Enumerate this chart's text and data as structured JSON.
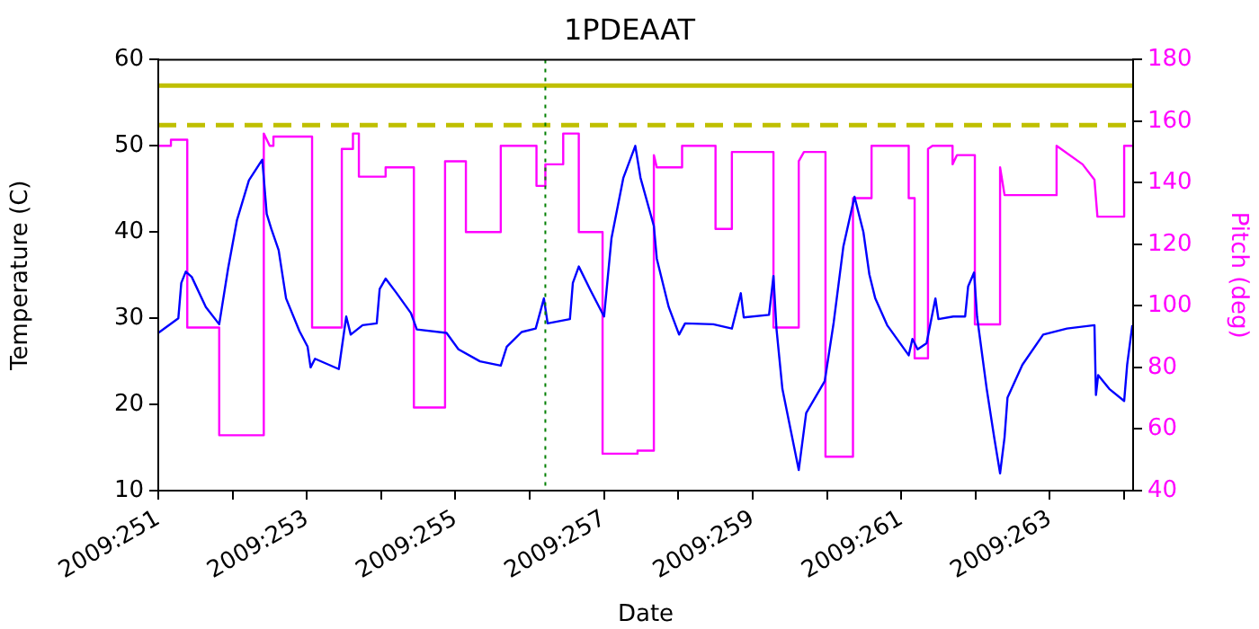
{
  "chart_data": {
    "type": "line",
    "title": "1PDEAAT",
    "xlabel": "Date",
    "ylabel": "Temperature (C)",
    "y2label": "Pitch (deg)",
    "xlim": [
      "2009-09-08T00:00",
      "2009-09-21T02:53"
    ],
    "xticks": [
      {
        "value": "2009-09-08",
        "label": "2009:251"
      },
      {
        "value": "2009-09-09",
        "label": null
      },
      {
        "value": "2009-09-10",
        "label": "2009:253"
      },
      {
        "value": "2009-09-11",
        "label": null
      },
      {
        "value": "2009-09-12",
        "label": "2009:255"
      },
      {
        "value": "2009-09-13",
        "label": null
      },
      {
        "value": "2009-09-14",
        "label": "2009:257"
      },
      {
        "value": "2009-09-15",
        "label": null
      },
      {
        "value": "2009-09-16",
        "label": "2009:259"
      },
      {
        "value": "2009-09-17",
        "label": null
      },
      {
        "value": "2009-09-18",
        "label": "2009:261"
      },
      {
        "value": "2009-09-19",
        "label": null
      },
      {
        "value": "2009-09-20",
        "label": "2009:263"
      },
      {
        "value": "2009-09-21",
        "label": null
      }
    ],
    "ylim": [
      10,
      60
    ],
    "yticks": [
      10,
      20,
      30,
      40,
      50,
      60
    ],
    "y2lim": [
      40,
      180
    ],
    "y2ticks": [
      40,
      60,
      80,
      100,
      120,
      140,
      160,
      180
    ],
    "grid": false,
    "legend": false,
    "marker": "none",
    "line_style": "solid",
    "ref_lines": [
      {
        "axis": "y",
        "value": 57,
        "color": "#bfbf00",
        "line_style": "solid"
      },
      {
        "axis": "y",
        "value": 52.4,
        "color": "#bfbf00",
        "line_style": "dashed"
      },
      {
        "axis": "x",
        "value": "2009-09-13T05:02",
        "color": "#008000",
        "line_style": "dotted"
      }
    ],
    "series": [
      {
        "color": "#0000ff",
        "x": [
          "2009-09-08T00:00",
          "2009-09-08T06:29",
          "2009-09-08T07:26",
          "2009-09-08T08:53",
          "2009-09-08T10:48",
          "2009-09-08T15:22",
          "2009-09-08T19:41",
          "2009-09-08T22:34",
          "2009-09-09T01:26",
          "2009-09-09T05:17",
          "2009-09-09T09:36",
          "2009-09-09T11:02",
          "2009-09-09T12:29",
          "2009-09-09T14:53",
          "2009-09-09T17:17",
          "2009-09-09T21:36",
          "2009-09-10T00:14",
          "2009-09-10T01:12",
          "2009-09-10T02:38",
          "2009-09-10T10:19",
          "2009-09-10T12:43",
          "2009-09-10T14:10",
          "2009-09-10T18:00",
          "2009-09-10T22:34",
          "2009-09-10T23:31",
          "2009-09-11T01:26",
          "2009-09-11T04:48",
          "2009-09-11T09:36",
          "2009-09-11T11:31",
          "2009-09-11T21:07",
          "2009-09-12T00:58",
          "2009-09-12T07:55",
          "2009-09-12T14:38",
          "2009-09-12T16:34",
          "2009-09-12T21:22",
          "2009-09-13T01:55",
          "2009-09-13T04:34",
          "2009-09-13T05:46",
          "2009-09-13T12:58",
          "2009-09-13T13:55",
          "2009-09-13T15:50",
          "2009-09-13T19:41",
          "2009-09-14T00:00",
          "2009-09-14T02:24",
          "2009-09-14T06:14",
          "2009-09-14T10:05",
          "2009-09-14T11:46",
          "2009-09-14T16:05",
          "2009-09-14T17:02",
          "2009-09-14T20:53",
          "2009-09-15T00:14",
          "2009-09-15T02:10",
          "2009-09-15T11:17",
          "2009-09-15T17:17",
          "2009-09-15T20:10",
          "2009-09-15T21:07",
          "2009-09-16T05:17",
          "2009-09-16T06:43",
          "2009-09-16T07:41",
          "2009-09-16T09:36",
          "2009-09-16T14:53",
          "2009-09-16T17:17",
          "2009-09-16T23:17",
          "2009-09-17T02:10",
          "2009-09-17T05:17",
          "2009-09-17T08:53",
          "2009-09-17T11:46",
          "2009-09-17T13:41",
          "2009-09-17T15:36",
          "2009-09-17T19:26",
          "2009-09-18T02:24",
          "2009-09-18T03:36",
          "2009-09-18T05:17",
          "2009-09-18T08:10",
          "2009-09-18T11:02",
          "2009-09-18T12:00",
          "2009-09-18T16:48",
          "2009-09-18T20:38",
          "2009-09-18T21:36",
          "2009-09-18T23:31",
          "2009-09-19T00:29",
          "2009-09-19T03:36",
          "2009-09-19T06:00",
          "2009-09-19T07:55",
          "2009-09-19T09:22",
          "2009-09-19T10:19",
          "2009-09-19T15:07",
          "2009-09-19T21:50",
          "2009-09-20T05:31",
          "2009-09-20T14:24",
          "2009-09-20T14:53",
          "2009-09-20T15:36",
          "2009-09-20T19:12",
          "2009-09-21T00:00",
          "2009-09-21T00:58",
          "2009-09-21T02:38"
        ],
        "values": [
          28.3,
          30.0,
          34.1,
          35.4,
          34.8,
          31.3,
          29.3,
          35.8,
          41.4,
          46.0,
          48.4,
          42.1,
          40.4,
          37.9,
          32.3,
          28.5,
          26.7,
          24.3,
          25.3,
          24.1,
          30.2,
          28.1,
          29.2,
          29.4,
          33.4,
          34.6,
          33.0,
          30.6,
          28.7,
          28.3,
          26.4,
          25.0,
          24.5,
          26.7,
          28.4,
          28.8,
          32.3,
          29.4,
          29.9,
          34.1,
          36.0,
          33.2,
          30.2,
          39.3,
          46.3,
          50.0,
          46.3,
          40.7,
          36.9,
          31.3,
          28.1,
          29.4,
          29.3,
          28.8,
          32.9,
          30.1,
          30.4,
          34.9,
          28.8,
          21.8,
          12.4,
          19.0,
          22.7,
          29.5,
          38.3,
          44.1,
          40.0,
          35.1,
          32.3,
          29.2,
          25.7,
          27.6,
          26.4,
          27.1,
          32.3,
          29.9,
          30.2,
          30.2,
          33.7,
          35.3,
          30.2,
          21.8,
          16.2,
          12.0,
          16.2,
          20.8,
          24.6,
          28.1,
          28.8,
          29.2,
          21.1,
          23.4,
          21.8,
          20.4,
          24.6,
          29.2
        ]
      },
      {
        "color": "#ff00ff",
        "axis": "y2",
        "x": [
          "2009-09-08T00:00",
          "2009-09-08T04:05",
          "2009-09-08T04:05",
          "2009-09-08T09:22",
          "2009-09-08T09:22",
          "2009-09-08T19:41",
          "2009-09-08T19:41",
          "2009-09-09T10:05",
          "2009-09-09T10:05",
          "2009-09-09T12:00",
          "2009-09-09T13:12",
          "2009-09-09T13:12",
          "2009-09-10T01:41",
          "2009-09-10T01:41",
          "2009-09-10T11:17",
          "2009-09-10T11:17",
          "2009-09-10T14:53",
          "2009-09-10T14:53",
          "2009-09-10T16:48",
          "2009-09-10T16:48",
          "2009-09-11T01:26",
          "2009-09-11T01:26",
          "2009-09-11T10:34",
          "2009-09-11T10:34",
          "2009-09-11T20:38",
          "2009-09-11T20:38",
          "2009-09-12T03:22",
          "2009-09-12T03:22",
          "2009-09-12T14:38",
          "2009-09-12T14:38",
          "2009-09-13T02:10",
          "2009-09-13T02:10",
          "2009-09-13T05:02",
          "2009-09-13T05:02",
          "2009-09-13T10:48",
          "2009-09-13T10:48",
          "2009-09-13T15:50",
          "2009-09-13T15:50",
          "2009-09-13T23:31",
          "2009-09-13T23:31",
          "2009-09-14T10:48",
          "2009-09-14T10:48",
          "2009-09-14T16:05",
          "2009-09-14T16:05",
          "2009-09-14T17:02",
          "2009-09-15T01:12",
          "2009-09-15T01:12",
          "2009-09-15T12:00",
          "2009-09-15T12:00",
          "2009-09-15T17:17",
          "2009-09-15T17:17",
          "2009-09-16T06:43",
          "2009-09-16T06:43",
          "2009-09-16T14:53",
          "2009-09-16T14:53",
          "2009-09-16T16:34",
          "2009-09-16T23:31",
          "2009-09-16T23:31",
          "2009-09-17T08:24",
          "2009-09-17T08:24",
          "2009-09-17T14:24",
          "2009-09-17T14:24",
          "2009-09-18T02:24",
          "2009-09-18T02:24",
          "2009-09-18T04:19",
          "2009-09-18T04:19",
          "2009-09-18T08:38",
          "2009-09-18T08:38",
          "2009-09-18T10:05",
          "2009-09-18T16:34",
          "2009-09-18T16:34",
          "2009-09-18T18:00",
          "2009-09-18T23:46",
          "2009-09-18T23:46",
          "2009-09-19T07:55",
          "2009-09-19T07:55",
          "2009-09-19T09:22",
          "2009-09-20T02:10",
          "2009-09-20T02:10",
          "2009-09-20T10:34",
          "2009-09-20T14:24",
          "2009-09-20T15:22",
          "2009-09-21T00:00",
          "2009-09-21T00:00",
          "2009-09-21T02:53"
        ],
        "values": [
          152,
          152,
          154,
          154,
          93,
          93,
          58,
          58,
          156,
          152,
          152,
          155,
          155,
          93,
          93,
          151,
          151,
          156,
          156,
          142,
          142,
          145,
          145,
          67,
          67,
          147,
          147,
          124,
          124,
          152,
          152,
          139,
          139,
          146,
          146,
          156,
          156,
          124,
          124,
          52,
          52,
          53,
          53,
          149,
          145,
          145,
          152,
          152,
          125,
          125,
          150,
          150,
          93,
          93,
          147,
          150,
          150,
          51,
          51,
          135,
          135,
          152,
          152,
          135,
          135,
          83,
          83,
          151,
          152,
          152,
          146,
          149,
          149,
          94,
          94,
          145,
          136,
          136,
          152,
          146,
          141,
          129,
          129,
          152,
          152
        ]
      }
    ]
  }
}
